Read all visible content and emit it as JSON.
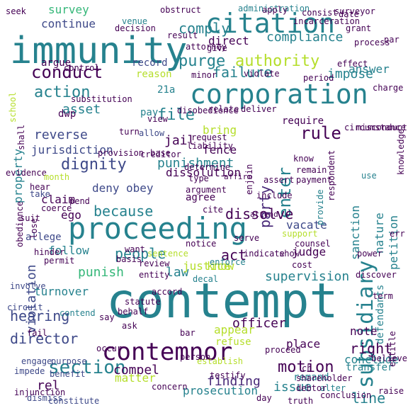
{
  "words": [
    {
      "t": "contempt",
      "c": "#26828e"
    },
    {
      "t": "immunity",
      "c": "#26828e"
    },
    {
      "t": "proceeding",
      "c": "#26828e"
    },
    {
      "t": "corporation",
      "c": "#26828e"
    },
    {
      "t": "contemnor",
      "c": "#440154"
    },
    {
      "t": "citation",
      "c": "#26828e"
    },
    {
      "t": "subsidiary",
      "c": "#26828e"
    },
    {
      "t": "section",
      "c": "#26828e"
    },
    {
      "t": "dignity",
      "c": "#3e4989"
    },
    {
      "t": "conduct",
      "c": "#440154"
    },
    {
      "t": "motion",
      "c": "#440154"
    },
    {
      "t": "action",
      "c": "#26828e"
    },
    {
      "t": "enter",
      "c": "#26828e"
    },
    {
      "t": "rule",
      "c": "#440154"
    },
    {
      "t": "purge",
      "c": "#26828e"
    },
    {
      "t": "hearing",
      "c": "#3e4989"
    },
    {
      "t": "director",
      "c": "#3e4989"
    },
    {
      "t": "authority",
      "c": "#b5de2b"
    },
    {
      "t": "because",
      "c": "#26828e"
    },
    {
      "t": "failure",
      "c": "#26828e"
    },
    {
      "t": "file",
      "c": "#26828e"
    },
    {
      "t": "people",
      "c": "#26828e"
    },
    {
      "t": "dissolve",
      "c": "#440154"
    },
    {
      "t": "asset",
      "c": "#26828e"
    },
    {
      "t": "party",
      "c": "#482878"
    },
    {
      "t": "violation",
      "c": "#3e4989"
    },
    {
      "t": "finding",
      "c": "#482878"
    },
    {
      "t": "issue",
      "c": "#26828e"
    },
    {
      "t": "comply",
      "c": "#26828e"
    },
    {
      "t": "line",
      "c": "#26828e"
    },
    {
      "t": "rel",
      "c": "#440154"
    },
    {
      "t": "punishment",
      "c": "#26828e"
    },
    {
      "t": "reverse",
      "c": "#3e4989"
    },
    {
      "t": "law",
      "c": "#26828e"
    },
    {
      "t": "act",
      "c": "#440154"
    },
    {
      "t": "right",
      "c": "#440154"
    },
    {
      "t": "supervision",
      "c": "#26828e"
    },
    {
      "t": "officer",
      "c": "#440154"
    },
    {
      "t": "sanction",
      "c": "#26828e"
    },
    {
      "t": "compliance",
      "c": "#26828e"
    },
    {
      "t": "jail",
      "c": "#440154"
    },
    {
      "t": "bring",
      "c": "#b5de2b"
    },
    {
      "t": "impose",
      "c": "#26828e"
    },
    {
      "t": "dissolution",
      "c": "#440154"
    },
    {
      "t": "continue",
      "c": "#3e4989"
    },
    {
      "t": "jurisdiction",
      "c": "#3e4989"
    },
    {
      "t": "compel",
      "c": "#440154"
    },
    {
      "t": "fence",
      "c": "#440154"
    },
    {
      "t": "claim",
      "c": "#440154"
    },
    {
      "t": "deny",
      "c": "#3e4989"
    },
    {
      "t": "obey",
      "c": "#3e4989"
    },
    {
      "t": "property",
      "c": "#26828e"
    },
    {
      "t": "punish",
      "c": "#35b779"
    },
    {
      "t": "turnover",
      "c": "#26828e"
    },
    {
      "t": "prosecution",
      "c": "#26828e"
    },
    {
      "t": "justice",
      "c": "#b5de2b"
    },
    {
      "t": "judge",
      "c": "#440154"
    },
    {
      "t": "appear",
      "c": "#b5de2b"
    },
    {
      "t": "matter",
      "c": "#b5de2b"
    },
    {
      "t": "note",
      "c": "#440154"
    },
    {
      "t": "place",
      "c": "#440154"
    },
    {
      "t": "answer",
      "c": "#26828e"
    },
    {
      "t": "vacate",
      "c": "#3e4989"
    },
    {
      "t": "nature",
      "c": "#26828e"
    },
    {
      "t": "petition",
      "c": "#26828e"
    },
    {
      "t": "survey",
      "c": "#35b779"
    },
    {
      "t": "direct",
      "c": "#440154"
    },
    {
      "t": "follow",
      "c": "#26828e"
    },
    {
      "t": "conclude",
      "c": "#26828e"
    },
    {
      "t": "pay",
      "c": "#26828e"
    },
    {
      "t": "dwp",
      "c": "#440154"
    },
    {
      "t": "21a",
      "c": "#26828e"
    },
    {
      "t": "ego",
      "c": "#440154"
    },
    {
      "t": "know",
      "c": "#b5de2b"
    },
    {
      "t": "remand",
      "c": "#26828e"
    },
    {
      "t": "transfer",
      "c": "#26828e"
    },
    {
      "t": "defendants",
      "c": "#26828e"
    },
    {
      "t": "argue",
      "c": "#440154"
    },
    {
      "t": "record",
      "c": "#3e4989"
    },
    {
      "t": "require",
      "c": "#440154"
    },
    {
      "t": "allege",
      "c": "#3e4989"
    },
    {
      "t": "seek",
      "c": "#440154"
    },
    {
      "t": "administration",
      "c": "#26828e"
    },
    {
      "t": "obstruct",
      "c": "#440154"
    },
    {
      "t": "venue",
      "c": "#26828e"
    },
    {
      "t": "violate",
      "c": "#440154"
    },
    {
      "t": "reason",
      "c": "#b5de2b"
    },
    {
      "t": "effect",
      "c": "#440154"
    },
    {
      "t": "evidence",
      "c": "#440154"
    },
    {
      "t": "month",
      "c": "#b5de2b"
    },
    {
      "t": "hear",
      "c": "#440154"
    },
    {
      "t": "take",
      "c": "#3e4989"
    },
    {
      "t": "turn",
      "c": "#440154"
    },
    {
      "t": "allow",
      "c": "#3e4989"
    },
    {
      "t": "base",
      "c": "#440154"
    },
    {
      "t": "agree",
      "c": "#440154"
    },
    {
      "t": "hinder",
      "c": "#440154"
    },
    {
      "t": "involve",
      "c": "#3e4989"
    },
    {
      "t": "fail",
      "c": "#440154"
    },
    {
      "t": "cost",
      "c": "#440154"
    },
    {
      "t": "power",
      "c": "#440154"
    },
    {
      "t": "discover",
      "c": "#440154"
    },
    {
      "t": "surveyor",
      "c": "#440154"
    },
    {
      "t": "grant",
      "c": "#440154"
    },
    {
      "t": "process",
      "c": "#440154"
    },
    {
      "t": "decal",
      "c": "#26828e"
    },
    {
      "t": "refuse",
      "c": "#b5de2b"
    },
    {
      "t": "circuit",
      "c": "#3e4989"
    },
    {
      "t": "contend",
      "c": "#26828e"
    },
    {
      "t": "bar",
      "c": "#440154"
    },
    {
      "t": "enforce",
      "c": "#26828e"
    },
    {
      "t": "indicate",
      "c": "#440154"
    },
    {
      "t": "show",
      "c": "#440154"
    },
    {
      "t": "assert",
      "c": "#440154"
    },
    {
      "t": "support",
      "c": "#b5de2b"
    },
    {
      "t": "provide",
      "c": "#26828e"
    },
    {
      "t": "use",
      "c": "#26828e"
    },
    {
      "t": "alter",
      "c": "#26828e"
    },
    {
      "t": "day",
      "c": "#440154"
    },
    {
      "t": "shareholder",
      "c": "#440154"
    },
    {
      "t": "benefit",
      "c": "#3e4989"
    },
    {
      "t": "purpose",
      "c": "#3e4989"
    },
    {
      "t": "concern",
      "c": "#440154"
    },
    {
      "t": "constitute",
      "c": "#3e4989"
    },
    {
      "t": "dismiss",
      "c": "#3e4989"
    },
    {
      "t": "impede",
      "c": "#3e4989"
    },
    {
      "t": "engage",
      "c": "#3e4989"
    },
    {
      "t": "testify",
      "c": "#440154"
    },
    {
      "t": "establish",
      "c": "#b5de2b"
    },
    {
      "t": "person",
      "c": "#440154"
    },
    {
      "t": "statute",
      "c": "#440154"
    },
    {
      "t": "say",
      "c": "#440154"
    },
    {
      "t": "ask",
      "c": "#440154"
    },
    {
      "t": "behalf",
      "c": "#440154"
    },
    {
      "t": "occur",
      "c": "#440154"
    },
    {
      "t": "review",
      "c": "#440154"
    },
    {
      "t": "entity",
      "c": "#440154"
    },
    {
      "t": "accord",
      "c": "#440154"
    },
    {
      "t": "basis",
      "c": "#440154"
    },
    {
      "t": "sentence",
      "c": "#b5de2b"
    },
    {
      "t": "notice",
      "c": "#440154"
    },
    {
      "t": "serve",
      "c": "#440154"
    },
    {
      "t": "counsel",
      "c": "#440154"
    },
    {
      "t": "cite",
      "c": "#440154"
    },
    {
      "t": "argument",
      "c": "#440154"
    },
    {
      "t": "include",
      "c": "#440154"
    },
    {
      "t": "want",
      "c": "#440154"
    },
    {
      "t": "permit",
      "c": "#440154"
    },
    {
      "t": "coerce",
      "c": "#440154"
    },
    {
      "t": "obedience",
      "c": "#440154"
    },
    {
      "t": "lose",
      "c": "#440154"
    },
    {
      "t": "suit",
      "c": "#440154"
    },
    {
      "t": "shall",
      "c": "#440154"
    },
    {
      "t": "school",
      "c": "#b5de2b"
    },
    {
      "t": "substitution",
      "c": "#440154"
    },
    {
      "t": "provision",
      "c": "#440154"
    },
    {
      "t": "creditor",
      "c": "#440154"
    },
    {
      "t": "disobedience",
      "c": "#440154"
    },
    {
      "t": "relate",
      "c": "#440154"
    },
    {
      "t": "deliver",
      "c": "#440154"
    },
    {
      "t": "request",
      "c": "#440154"
    },
    {
      "t": "liability",
      "c": "#440154"
    },
    {
      "t": "determine",
      "c": "#440154"
    },
    {
      "t": "type",
      "c": "#440154"
    },
    {
      "t": "know",
      "c": "#440154"
    },
    {
      "t": "remain",
      "c": "#440154"
    },
    {
      "t": "payment",
      "c": "#440154"
    },
    {
      "t": "enjoin",
      "c": "#440154"
    },
    {
      "t": "respondent",
      "c": "#440154"
    },
    {
      "t": "knowledge",
      "c": "#440154"
    },
    {
      "t": "misconduct",
      "c": "#440154"
    },
    {
      "t": "circumstance",
      "c": "#440154"
    },
    {
      "t": "charge",
      "c": "#440154"
    },
    {
      "t": "period",
      "c": "#440154"
    },
    {
      "t": "minor",
      "c": "#440154"
    },
    {
      "t": "control",
      "c": "#440154"
    },
    {
      "t": "decision",
      "c": "#440154"
    },
    {
      "t": "result",
      "c": "#440154"
    },
    {
      "t": "apply",
      "c": "#440154"
    },
    {
      "t": "consist",
      "c": "#440154"
    },
    {
      "t": "incarceration",
      "c": "#440154"
    },
    {
      "t": "date",
      "c": "#440154"
    },
    {
      "t": "par",
      "c": "#440154"
    },
    {
      "t": "attorney",
      "c": "#440154"
    },
    {
      "t": "give",
      "c": "#440154"
    },
    {
      "t": "view",
      "c": "#440154"
    },
    {
      "t": "pend",
      "c": "#440154"
    },
    {
      "t": "term",
      "c": "#440154"
    },
    {
      "t": "err",
      "c": "#440154"
    },
    {
      "t": "entitle",
      "c": "#440154"
    },
    {
      "t": "raise",
      "c": "#440154"
    },
    {
      "t": "believe",
      "c": "#440154"
    },
    {
      "t": "ch",
      "c": "#440154"
    },
    {
      "t": "proceed",
      "c": "#440154"
    },
    {
      "t": "conclusion",
      "c": "#440154"
    },
    {
      "t": "truth",
      "c": "#440154"
    },
    {
      "t": "debtor",
      "c": "#440154"
    },
    {
      "t": "injunction",
      "c": "#440154"
    },
    {
      "t": "affirm",
      "c": "#440154"
    },
    {
      "t": "attend",
      "c": "#440154"
    }
  ]
}
